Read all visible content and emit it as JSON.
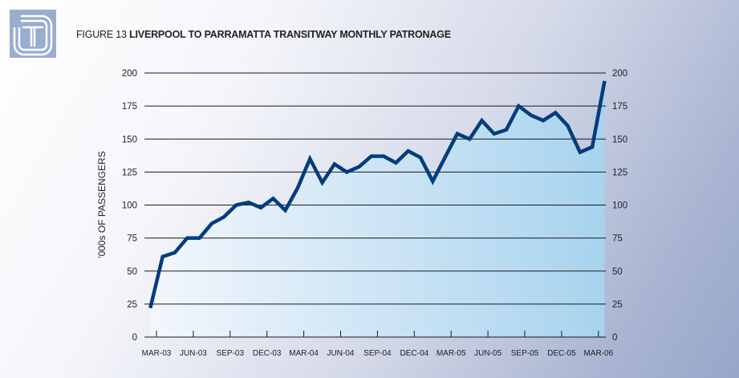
{
  "title": {
    "prefix": "FIGURE 13",
    "main": "LIVERPOOL TO PARRAMATTA TRANSITWAY MONTHLY PATRONAGE"
  },
  "chart_data": {
    "type": "line",
    "title": "FIGURE 13 LIVERPOOL TO PARRAMATTA TRANSITWAY MONTHLY PATRONAGE",
    "ylabel": "'000s OF PASSENGERS",
    "xlabel": "",
    "ylim": [
      0,
      200
    ],
    "yticks": [
      0,
      25,
      50,
      75,
      100,
      125,
      150,
      175,
      200
    ],
    "xtick_labels": [
      "MAR-03",
      "JUN-03",
      "SEP-03",
      "DEC-03",
      "MAR-04",
      "JUN-04",
      "SEP-04",
      "DEC-04",
      "MAR-05",
      "JUN-05",
      "SEP-05",
      "DEC-05",
      "MAR-06"
    ],
    "grid": true,
    "series": [
      {
        "name": "Monthly patronage",
        "color": "#003d7c",
        "values": [
          22,
          61,
          64,
          75,
          75,
          86,
          91,
          100,
          102,
          98,
          105,
          96,
          113,
          135,
          117,
          131,
          125,
          129,
          137,
          137,
          132,
          141,
          136,
          118,
          136,
          154,
          150,
          164,
          154,
          157,
          175,
          168,
          164,
          170,
          160,
          140,
          144,
          194
        ]
      }
    ]
  }
}
